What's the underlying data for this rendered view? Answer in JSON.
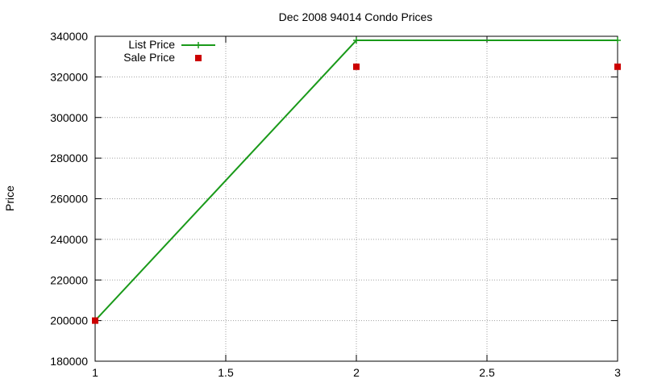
{
  "chart_data": {
    "type": "line",
    "title": "Dec 2008 94014 Condo Prices",
    "xlabel": "",
    "ylabel": "Price",
    "xlim": [
      1,
      3
    ],
    "ylim": [
      180000,
      340000
    ],
    "x_ticks": [
      1,
      1.5,
      2,
      2.5,
      3
    ],
    "x_tick_labels": [
      "1",
      "1.5",
      "2",
      "2.5",
      "3"
    ],
    "y_ticks": [
      180000,
      200000,
      220000,
      240000,
      260000,
      280000,
      300000,
      320000,
      340000
    ],
    "y_tick_labels": [
      "180000",
      "200000",
      "220000",
      "240000",
      "260000",
      "280000",
      "300000",
      "320000",
      "340000"
    ],
    "grid": true,
    "legend_position": "top-left",
    "series": [
      {
        "name": "List Price",
        "style": "linespoints",
        "marker": "plus",
        "color": "#1a9a1a",
        "x": [
          1,
          2,
          3
        ],
        "y": [
          200000,
          338000,
          338000
        ]
      },
      {
        "name": "Sale Price",
        "style": "points",
        "marker": "square",
        "color": "#cc0000",
        "x": [
          1,
          2,
          3
        ],
        "y": [
          200000,
          325000,
          325000
        ]
      }
    ]
  }
}
